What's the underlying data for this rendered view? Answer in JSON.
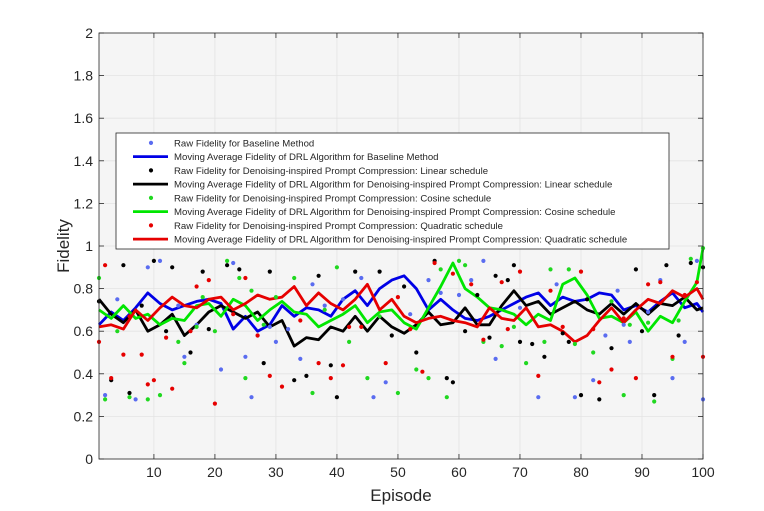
{
  "chart_data": {
    "type": "line",
    "xlabel": "Episode",
    "ylabel": "Fidelity",
    "xlim": [
      1,
      100
    ],
    "ylim": [
      0,
      2
    ],
    "xticks": [
      10,
      20,
      30,
      40,
      50,
      60,
      70,
      80,
      90,
      100
    ],
    "yticks": [
      0,
      0.2,
      0.4,
      0.6,
      0.8,
      1,
      1.2,
      1.4,
      1.6,
      1.8,
      2
    ],
    "grid": true,
    "legend_position": "center",
    "colors": {
      "baseline": "#0000e6",
      "linear": "#000000",
      "cosine": "#00e600",
      "quadratic": "#e60000",
      "baseline_raw": "#5a6cf0",
      "cosine_raw": "#20d820"
    },
    "series": [
      {
        "name": "Raw Fidelity for Baseline Method",
        "kind": "scatter",
        "color": "#5a6cf0",
        "x": [
          2,
          4,
          7,
          9,
          11,
          14,
          15,
          17,
          21,
          23,
          25,
          26,
          27,
          29,
          30,
          32,
          34,
          36,
          38,
          41,
          44,
          46,
          48,
          52,
          55,
          57,
          60,
          62,
          64,
          66,
          70,
          73,
          76,
          79,
          82,
          84,
          86,
          87,
          88,
          91,
          93,
          95,
          97,
          99,
          100
        ],
        "y": [
          0.3,
          0.75,
          0.28,
          0.9,
          0.93,
          0.72,
          0.48,
          0.63,
          0.42,
          0.92,
          0.48,
          0.29,
          0.58,
          0.62,
          0.55,
          0.61,
          0.47,
          0.82,
          0.72,
          0.75,
          0.85,
          0.29,
          0.36,
          0.68,
          0.84,
          0.78,
          0.77,
          0.84,
          0.93,
          0.47,
          0.71,
          0.29,
          0.82,
          0.29,
          0.37,
          0.58,
          0.79,
          0.63,
          0.55,
          0.69,
          0.84,
          0.38,
          0.55,
          0.93,
          0.28
        ]
      },
      {
        "name": "Moving Average Fidelity of DRL Algorithm for Baseline Method",
        "kind": "line",
        "color": "#0000e6",
        "x": [
          1,
          3,
          5,
          7,
          9,
          11,
          13,
          15,
          17,
          19,
          21,
          23,
          25,
          27,
          29,
          31,
          33,
          35,
          37,
          39,
          41,
          43,
          45,
          47,
          49,
          51,
          53,
          55,
          57,
          59,
          61,
          63,
          65,
          67,
          69,
          71,
          73,
          75,
          77,
          79,
          81,
          83,
          85,
          87,
          89,
          91,
          93,
          95,
          97,
          99,
          100
        ],
        "y": [
          0.63,
          0.69,
          0.65,
          0.71,
          0.78,
          0.73,
          0.7,
          0.72,
          0.74,
          0.75,
          0.73,
          0.61,
          0.67,
          0.6,
          0.63,
          0.72,
          0.67,
          0.71,
          0.7,
          0.67,
          0.75,
          0.79,
          0.72,
          0.8,
          0.84,
          0.86,
          0.8,
          0.7,
          0.75,
          0.7,
          0.66,
          0.65,
          0.67,
          0.7,
          0.73,
          0.76,
          0.78,
          0.72,
          0.76,
          0.74,
          0.75,
          0.78,
          0.77,
          0.7,
          0.72,
          0.69,
          0.74,
          0.78,
          0.71,
          0.73,
          0.69
        ]
      },
      {
        "name": "Raw Fidelity for Denoising-inspired Prompt Compression: Linear schedule",
        "kind": "scatter",
        "color": "#000000",
        "x": [
          1,
          3,
          5,
          6,
          8,
          10,
          12,
          13,
          16,
          18,
          19,
          22,
          24,
          28,
          29,
          33,
          35,
          37,
          39,
          40,
          43,
          47,
          49,
          51,
          53,
          56,
          58,
          59,
          61,
          63,
          65,
          66,
          68,
          69,
          70,
          72,
          74,
          77,
          78,
          80,
          81,
          83,
          85,
          89,
          90,
          92,
          94,
          96,
          98,
          100
        ],
        "y": [
          0.74,
          0.37,
          0.91,
          0.31,
          0.72,
          0.93,
          0.6,
          0.9,
          0.5,
          0.88,
          0.61,
          0.91,
          0.89,
          0.45,
          0.88,
          0.37,
          0.39,
          0.86,
          0.44,
          0.29,
          0.88,
          0.88,
          0.58,
          0.81,
          0.5,
          0.93,
          0.38,
          0.36,
          0.6,
          0.77,
          0.57,
          0.86,
          0.84,
          0.91,
          0.55,
          0.54,
          0.48,
          0.59,
          0.55,
          0.3,
          0.75,
          0.28,
          0.52,
          0.89,
          0.6,
          0.3,
          0.91,
          0.58,
          0.92,
          0.9
        ]
      },
      {
        "name": "Moving Average Fidelity of DRL Algorithm for Denoising-inspired Prompt Compression: Linear schedule",
        "kind": "line",
        "color": "#000000",
        "x": [
          1,
          3,
          5,
          7,
          9,
          11,
          13,
          15,
          17,
          19,
          21,
          23,
          25,
          27,
          29,
          31,
          33,
          35,
          37,
          39,
          41,
          43,
          45,
          47,
          49,
          51,
          53,
          55,
          57,
          59,
          61,
          63,
          65,
          67,
          69,
          71,
          73,
          75,
          77,
          79,
          81,
          83,
          85,
          87,
          89,
          91,
          93,
          95,
          97,
          99,
          100
        ],
        "y": [
          0.75,
          0.68,
          0.64,
          0.7,
          0.6,
          0.63,
          0.68,
          0.58,
          0.63,
          0.69,
          0.72,
          0.69,
          0.66,
          0.69,
          0.62,
          0.65,
          0.53,
          0.57,
          0.56,
          0.62,
          0.6,
          0.67,
          0.6,
          0.67,
          0.62,
          0.59,
          0.63,
          0.69,
          0.63,
          0.64,
          0.71,
          0.63,
          0.63,
          0.72,
          0.79,
          0.72,
          0.74,
          0.68,
          0.71,
          0.74,
          0.7,
          0.68,
          0.73,
          0.68,
          0.73,
          0.68,
          0.73,
          0.72,
          0.76,
          0.7,
          0.71
        ]
      },
      {
        "name": "Raw Fidelity for Denoising-inspired Prompt Compression: Cosine schedule",
        "kind": "scatter",
        "color": "#20d820",
        "x": [
          1,
          2,
          4,
          6,
          9,
          11,
          14,
          15,
          17,
          18,
          20,
          22,
          24,
          25,
          26,
          28,
          30,
          33,
          36,
          38,
          40,
          42,
          45,
          47,
          50,
          53,
          55,
          57,
          58,
          60,
          61,
          64,
          67,
          69,
          71,
          74,
          75,
          78,
          79,
          82,
          85,
          87,
          88,
          91,
          92,
          95,
          96,
          98,
          100
        ],
        "y": [
          0.85,
          0.28,
          0.6,
          0.29,
          0.28,
          0.3,
          0.55,
          0.45,
          0.62,
          0.76,
          0.6,
          0.93,
          0.85,
          0.38,
          0.79,
          0.63,
          0.76,
          0.85,
          0.31,
          0.7,
          0.9,
          0.55,
          0.38,
          0.67,
          0.31,
          0.42,
          0.38,
          0.89,
          0.29,
          0.93,
          0.91,
          0.55,
          0.53,
          0.62,
          0.45,
          0.55,
          0.89,
          0.89,
          0.54,
          0.5,
          0.74,
          0.3,
          0.63,
          0.64,
          0.27,
          0.47,
          0.65,
          0.94,
          0.99
        ]
      },
      {
        "name": "Moving Average Fidelity of DRL Algorithm for Denoising-inspired Prompt Compression: Cosine schedule",
        "kind": "line",
        "color": "#00e600",
        "x": [
          1,
          3,
          5,
          7,
          9,
          11,
          13,
          15,
          17,
          19,
          21,
          23,
          25,
          27,
          29,
          31,
          33,
          35,
          37,
          39,
          41,
          43,
          45,
          47,
          49,
          51,
          53,
          55,
          57,
          59,
          61,
          63,
          65,
          67,
          69,
          71,
          73,
          75,
          77,
          79,
          81,
          83,
          85,
          87,
          89,
          91,
          93,
          95,
          97,
          99,
          100
        ],
        "y": [
          0.7,
          0.66,
          0.72,
          0.66,
          0.68,
          0.63,
          0.66,
          0.65,
          0.72,
          0.73,
          0.67,
          0.75,
          0.72,
          0.65,
          0.7,
          0.74,
          0.69,
          0.68,
          0.62,
          0.65,
          0.68,
          0.72,
          0.64,
          0.69,
          0.7,
          0.64,
          0.61,
          0.71,
          0.81,
          0.92,
          0.8,
          0.76,
          0.71,
          0.7,
          0.68,
          0.63,
          0.68,
          0.65,
          0.82,
          0.85,
          0.77,
          0.66,
          0.67,
          0.64,
          0.69,
          0.6,
          0.67,
          0.64,
          0.74,
          0.83,
          0.99
        ]
      },
      {
        "name": "Raw Fidelity for Denoising-inspired Prompt Compression: Quadratic schedule",
        "kind": "scatter",
        "color": "#e60000",
        "x": [
          1,
          2,
          3,
          5,
          6,
          8,
          9,
          10,
          12,
          13,
          16,
          17,
          19,
          20,
          23,
          25,
          27,
          29,
          31,
          34,
          37,
          39,
          41,
          42,
          44,
          48,
          50,
          52,
          54,
          56,
          59,
          62,
          64,
          67,
          68,
          70,
          73,
          75,
          77,
          80,
          82,
          83,
          85,
          87,
          89,
          91,
          93,
          95,
          97,
          99,
          100
        ],
        "y": [
          0.55,
          0.91,
          0.38,
          0.49,
          0.67,
          0.49,
          0.35,
          0.37,
          0.57,
          0.33,
          0.6,
          0.81,
          0.84,
          0.26,
          0.68,
          0.85,
          0.58,
          0.39,
          0.34,
          0.65,
          0.45,
          0.38,
          0.44,
          0.62,
          0.62,
          0.45,
          0.76,
          0.61,
          0.41,
          0.92,
          0.87,
          0.82,
          0.56,
          0.83,
          0.61,
          0.88,
          0.39,
          0.79,
          0.62,
          0.88,
          0.61,
          0.36,
          0.42,
          0.66,
          0.38,
          0.82,
          0.83,
          0.48,
          0.77,
          0.83,
          0.48
        ]
      },
      {
        "name": "Moving Average Fidelity of DRL Algorithm for Denoising-inspired Prompt Compression: Quadratic schedule",
        "kind": "line",
        "color": "#e60000",
        "x": [
          1,
          3,
          5,
          7,
          9,
          11,
          13,
          15,
          17,
          19,
          21,
          23,
          25,
          27,
          29,
          31,
          33,
          35,
          37,
          39,
          41,
          43,
          45,
          47,
          49,
          51,
          53,
          55,
          57,
          59,
          61,
          63,
          65,
          67,
          69,
          71,
          73,
          75,
          77,
          79,
          81,
          83,
          85,
          87,
          89,
          91,
          93,
          95,
          97,
          99,
          100
        ],
        "y": [
          0.62,
          0.63,
          0.61,
          0.7,
          0.65,
          0.71,
          0.76,
          0.72,
          0.71,
          0.75,
          0.76,
          0.7,
          0.73,
          0.77,
          0.75,
          0.76,
          0.81,
          0.72,
          0.78,
          0.73,
          0.7,
          0.75,
          0.82,
          0.7,
          0.75,
          0.67,
          0.64,
          0.66,
          0.67,
          0.65,
          0.64,
          0.62,
          0.71,
          0.66,
          0.65,
          0.71,
          0.62,
          0.63,
          0.6,
          0.55,
          0.58,
          0.65,
          0.71,
          0.64,
          0.7,
          0.75,
          0.73,
          0.79,
          0.76,
          0.8,
          0.75
        ]
      }
    ]
  }
}
